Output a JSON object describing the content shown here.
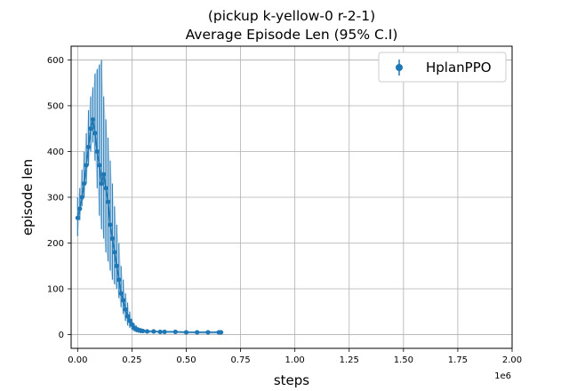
{
  "chart_data": {
    "type": "line",
    "title": "(pickup k-yellow-0 r-2-1)",
    "subtitle": "Average Episode Len (95% C.I)",
    "xlabel": "steps",
    "ylabel": "episode len",
    "x_offset_label": "1e6",
    "xlim": [
      -0.03,
      2.0
    ],
    "ylim": [
      -30,
      630
    ],
    "xticks": [
      0.0,
      0.25,
      0.5,
      0.75,
      1.0,
      1.25,
      1.5,
      1.75,
      2.0
    ],
    "xtick_labels": [
      "0.00",
      "0.25",
      "0.50",
      "0.75",
      "1.00",
      "1.25",
      "1.50",
      "1.75",
      "2.00"
    ],
    "yticks": [
      0,
      100,
      200,
      300,
      400,
      500,
      600
    ],
    "ytick_labels": [
      "0",
      "100",
      "200",
      "300",
      "400",
      "500",
      "600"
    ],
    "grid": true,
    "legend_position": "top-right",
    "series": [
      {
        "name": "HplanPPO",
        "color": "#1f77b4",
        "band_color": "#d6e6f4",
        "x": [
          0.0,
          0.01,
          0.02,
          0.03,
          0.04,
          0.05,
          0.06,
          0.07,
          0.08,
          0.09,
          0.1,
          0.11,
          0.12,
          0.13,
          0.14,
          0.15,
          0.16,
          0.17,
          0.18,
          0.19,
          0.2,
          0.21,
          0.22,
          0.23,
          0.24,
          0.25,
          0.26,
          0.27,
          0.28,
          0.29,
          0.3,
          0.32,
          0.35,
          0.38,
          0.4,
          0.45,
          0.5,
          0.55,
          0.6,
          0.65,
          0.66
        ],
        "y": [
          255,
          275,
          300,
          330,
          370,
          410,
          450,
          470,
          440,
          400,
          370,
          330,
          350,
          320,
          290,
          240,
          210,
          180,
          150,
          120,
          90,
          75,
          55,
          40,
          30,
          22,
          15,
          12,
          10,
          9,
          8,
          7,
          7,
          6,
          6,
          6,
          5,
          5,
          5,
          5,
          5
        ],
        "lower": [
          215,
          250,
          280,
          300,
          330,
          370,
          400,
          420,
          380,
          320,
          260,
          230,
          210,
          180,
          160,
          140,
          120,
          110,
          100,
          80,
          60,
          45,
          30,
          20,
          15,
          10,
          7,
          5,
          4,
          3,
          3,
          2,
          2,
          2,
          2,
          2,
          2,
          1,
          1,
          1,
          1
        ],
        "upper": [
          300,
          320,
          360,
          400,
          440,
          490,
          520,
          540,
          570,
          580,
          590,
          600,
          520,
          470,
          430,
          380,
          330,
          280,
          240,
          200,
          150,
          120,
          90,
          70,
          50,
          35,
          25,
          20,
          16,
          14,
          12,
          11,
          10,
          9,
          9,
          9,
          8,
          8,
          8,
          8,
          8
        ]
      }
    ]
  }
}
